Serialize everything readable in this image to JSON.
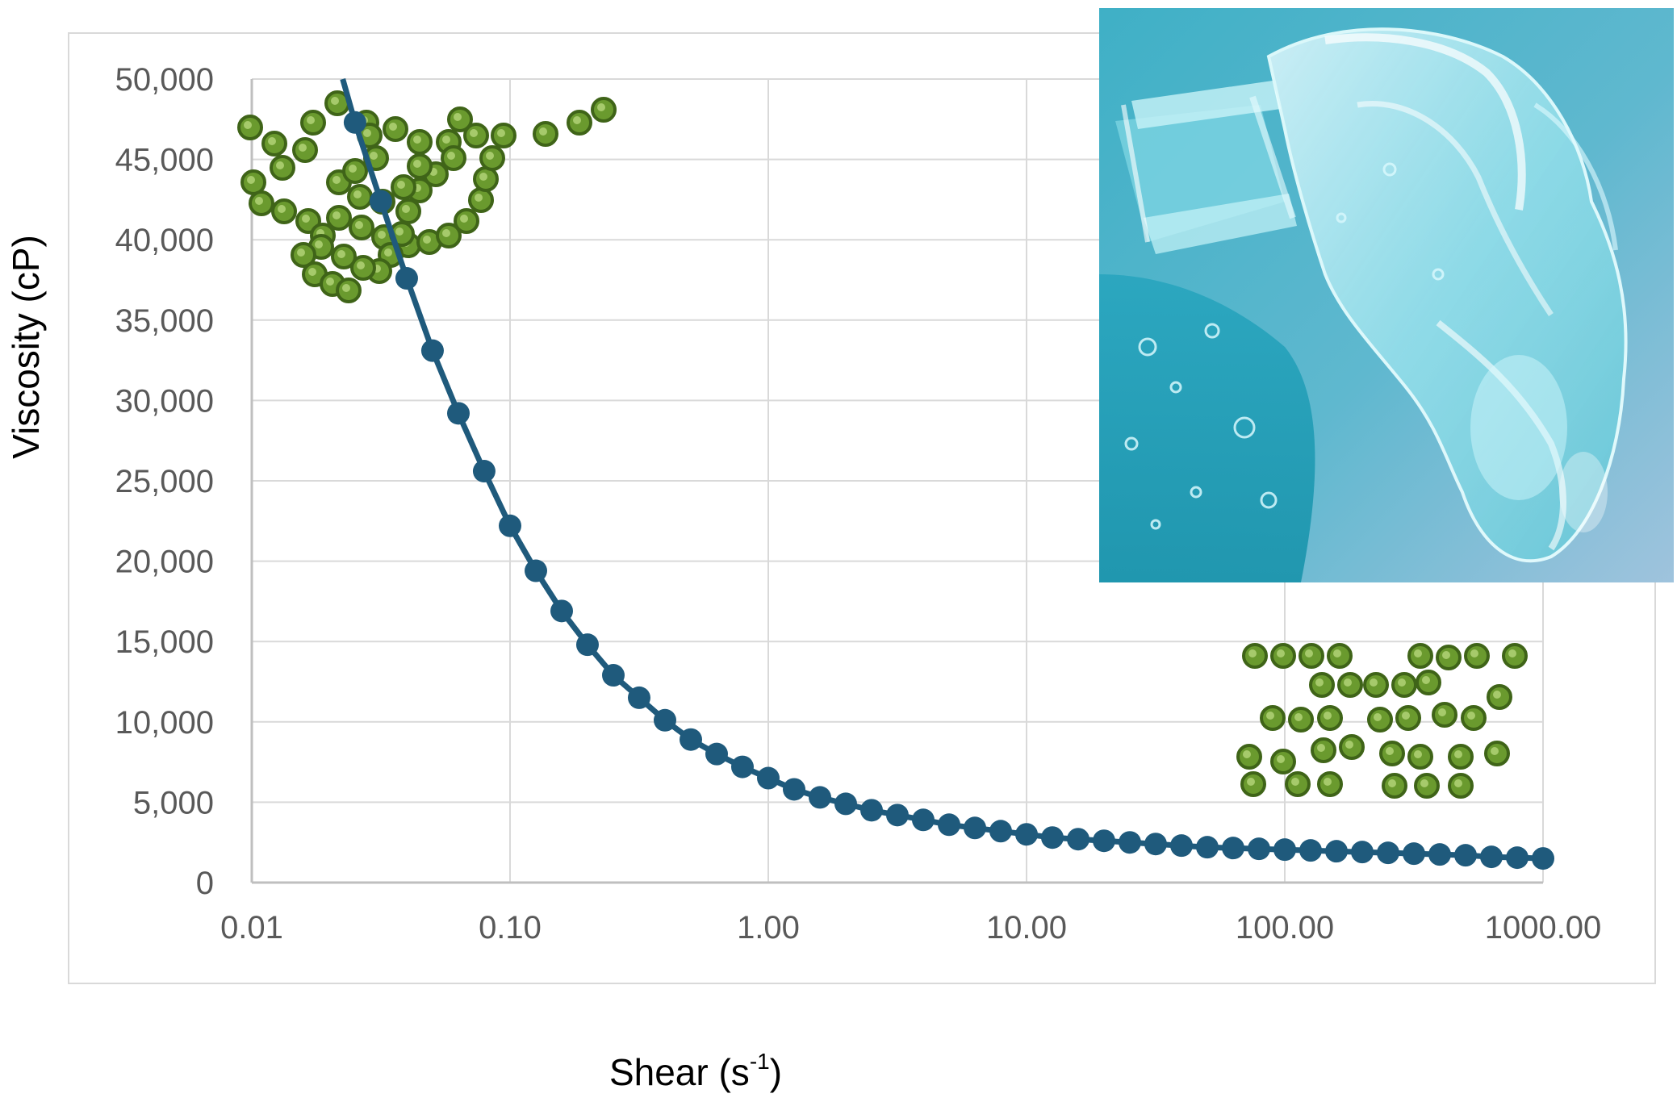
{
  "colors": {
    "series": "#1f5a7c",
    "gridline": "#d9d9d9",
    "axis_line": "#bfbfbf",
    "tick_text": "#595959",
    "bead_fill": "#6a9a2e",
    "bead_dark": "#3f6418",
    "gel_blue": "#4fb6c8"
  },
  "icons": {
    "photo": "gel-pouring-photo",
    "tangled": "tangled-polymer-chains-icon",
    "aligned": "aligned-polymer-chains-icon"
  },
  "chart_data": {
    "type": "scatter",
    "mode": "line+markers",
    "xscale": "log",
    "xlabel": "Shear (s-1)",
    "xlabel_base": "Shear (s",
    "xlabel_sup": "-1",
    "xlabel_close": ")",
    "ylabel": "Viscosity (cP)",
    "xlim": [
      0.01,
      1000
    ],
    "ylim": [
      0,
      50000
    ],
    "grid": true,
    "x_tick_labels": [
      "0.01",
      "0.10",
      "1.00",
      "10.00",
      "100.00",
      "1000.00"
    ],
    "x_tick_values": [
      0.01,
      0.1,
      1,
      10,
      100,
      1000
    ],
    "y_tick_labels": [
      "0",
      "5,000",
      "10,000",
      "15,000",
      "20,000",
      "25,000",
      "30,000",
      "35,000",
      "40,000",
      "45,000",
      "50,000"
    ],
    "y_tick_values": [
      0,
      5000,
      10000,
      15000,
      20000,
      25000,
      30000,
      35000,
      40000,
      45000,
      50000
    ],
    "curve_start": {
      "x": 0.0225,
      "y": 50000
    },
    "series": [
      {
        "x": [
          0.0251,
          0.0316,
          0.0398,
          0.0501,
          0.0631,
          0.0794,
          0.1,
          0.1259,
          0.1585,
          0.1995,
          0.2512,
          0.3162,
          0.3981,
          0.5012,
          0.631,
          0.7943,
          1.0,
          1.259,
          1.585,
          1.995,
          2.512,
          3.162,
          3.981,
          5.012,
          6.31,
          7.943,
          10.0,
          12.59,
          15.85,
          19.95,
          25.12,
          31.62,
          39.81,
          50.12,
          63.1,
          79.43,
          100.0,
          125.9,
          158.5,
          199.5,
          251.2,
          316.2,
          398.1,
          501.2,
          631.0,
          794.3,
          1000.0
        ],
        "y": [
          47300,
          42400,
          37600,
          33100,
          29200,
          25600,
          22200,
          19400,
          16900,
          14800,
          12900,
          11500,
          10100,
          8900,
          8000,
          7200,
          6500,
          5800,
          5300,
          4900,
          4500,
          4200,
          3900,
          3600,
          3400,
          3200,
          3000,
          2800,
          2700,
          2600,
          2500,
          2400,
          2300,
          2200,
          2150,
          2100,
          2050,
          2000,
          1950,
          1900,
          1850,
          1800,
          1750,
          1700,
          1600,
          1550,
          1500
        ]
      }
    ]
  }
}
